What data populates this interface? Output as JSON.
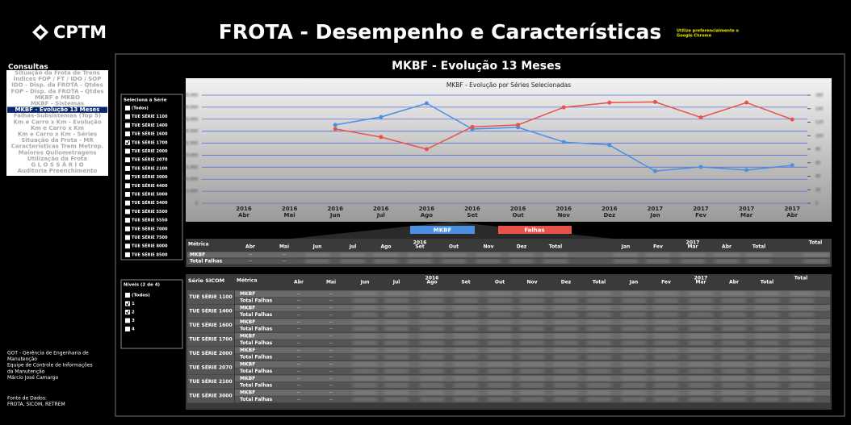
{
  "header": {
    "logo": "CPTM",
    "title": "FROTA - Desempenho e Características",
    "note_line1": "Utilize preferencialmente o",
    "note_line2": "Google Chrome"
  },
  "menu": {
    "title": "Consultas",
    "selected": 6,
    "items": [
      "Situação da Frota de Trens",
      "Índices FOP / FT / IDO / SOP",
      "IDO - Disp. da FROTA - Qtdes",
      "FOP - Disp. da FROTA - Qtdes",
      "MKBF e MKBO",
      "MKBF - Sistemas",
      "MKBF - Evolução 13 Meses",
      "Falhas-Subsistemas (Top 5)",
      "Km e Carro x Km - Evolução",
      "Km e Carro x Km",
      "Km e Carro x Km - Séries",
      "Situação da Frota - MR",
      "Características Trem Metrop.",
      "Maiores Quilometragens",
      "Utilização da Frota",
      "G L O S S Á R I O",
      "Auditoria Preenchimento"
    ]
  },
  "panel_title": "MKBF - Evolução 13 Meses",
  "series_filter": {
    "title": "Seleciona a Série",
    "items": [
      "(Todos)",
      "TUE SÉRIE 1100",
      "TUE SÉRIE 1400",
      "TUE SÉRIE 1600",
      "TUE SÉRIE 1700",
      "TUE SÉRIE 2000",
      "TUE SÉRIE 2070",
      "TUE SÉRIE 2100",
      "TUE SÉRIE 3000",
      "TUE SÉRIE 4400",
      "TUE SÉRIE 5000",
      "TUE SÉRIE 5400",
      "TUE SÉRIE 5500",
      "TUE SÉRIE 5550",
      "TUE SÉRIE 7000",
      "TUE SÉRIE 7500",
      "TUE SÉRIE 8000",
      "TUE SÉRIE 8500"
    ],
    "checked": [
      false,
      false,
      false,
      false,
      true,
      false,
      false,
      false,
      false,
      false,
      false,
      false,
      false,
      false,
      false,
      false,
      false,
      false
    ]
  },
  "level_filter": {
    "title": "Níveis (2 de 4)",
    "items": [
      "(Todos)",
      "1",
      "2",
      "3",
      "4"
    ],
    "checked": [
      false,
      true,
      true,
      false,
      false
    ]
  },
  "chart_data": {
    "type": "line",
    "title": "MKBF - Evolução por Séries Selecionadas",
    "category_years": [
      "2016",
      "2016",
      "2016",
      "2016",
      "2016",
      "2016",
      "2016",
      "2016",
      "2016",
      "2017",
      "2017",
      "2017",
      "2017"
    ],
    "categories": [
      "Abr",
      "Mai",
      "Jun",
      "Jul",
      "Ago",
      "Set",
      "Out",
      "Nov",
      "Dez",
      "Jan",
      "Fev",
      "Mar",
      "Abr"
    ],
    "series": [
      {
        "name": "MKBF",
        "color": "#4a90e2",
        "values": [
          null,
          null,
          32600,
          35900,
          41600,
          30900,
          31600,
          25500,
          24200,
          13400,
          15100,
          13800,
          15800
        ]
      },
      {
        "name": "Falhas",
        "color": "#e8524a",
        "axis": "y2",
        "values": [
          null,
          null,
          110,
          98,
          80,
          113,
          116,
          142,
          149,
          150,
          127,
          149,
          124
        ]
      }
    ],
    "ylim": [
      0,
      45000
    ],
    "yticks": [
      0,
      {
        "value": 5000,
        "label": "5,000"
      },
      {
        "value": 10000,
        "label": "10,000"
      },
      {
        "value": 15000,
        "label": "15,000"
      },
      {
        "value": 20000,
        "label": "20,000"
      },
      {
        "value": 25000,
        "label": "25,000"
      },
      {
        "value": 30000,
        "label": "30,000"
      },
      {
        "value": 35000,
        "label": "35,000"
      },
      {
        "value": 40000,
        "label": "40,000"
      },
      {
        "value": 45000,
        "label": "45,000"
      }
    ],
    "y2lim": [
      0,
      160
    ],
    "y2ticks": [
      0,
      20,
      40,
      60,
      80,
      100,
      120,
      140,
      160
    ],
    "grid": true
  },
  "table1": {
    "metric_header": "Métrica",
    "years": [
      "2016",
      "2017"
    ],
    "months_2016": [
      "Abr",
      "Mai",
      "Jun",
      "Jul",
      "Ago",
      "Set",
      "Out",
      "Nov",
      "Dez"
    ],
    "months_2017": [
      "Jan",
      "Fev",
      "Mar",
      "Abr"
    ],
    "total": "Total",
    "rows": [
      "MKBF",
      "Total Falhas"
    ],
    "empty": "--"
  },
  "table2": {
    "series_header": "Série SICOM",
    "metric_header": "Métrica",
    "years": [
      "2016",
      "2017"
    ],
    "months_2016": [
      "Abr",
      "Mai",
      "Jun",
      "Jul",
      "Ago",
      "Set",
      "Out",
      "Nov",
      "Dez"
    ],
    "months_2017": [
      "Jan",
      "Fev",
      "Mar",
      "Abr"
    ],
    "total": "Total",
    "series": [
      "TUE SÉRIE 1100",
      "TUE SÉRIE 1400",
      "TUE SÉRIE 1600",
      "TUE SÉRIE 1700",
      "TUE SÉRIE 2000",
      "TUE SÉRIE 2070",
      "TUE SÉRIE 2100",
      "TUE SÉRIE 3000"
    ],
    "metrics": [
      "MKBF",
      "Total Falhas"
    ],
    "empty": "--"
  },
  "footer": {
    "lines": [
      "GOT - Gerência de Engenharia de",
      "Manutenção",
      "Equipe de Controle de Informações",
      "da Manutenção",
      "Márcio José Camargo"
    ],
    "source_lines": [
      "Fonte de Dados:",
      "FROTA, SICOM, RETREM"
    ]
  }
}
